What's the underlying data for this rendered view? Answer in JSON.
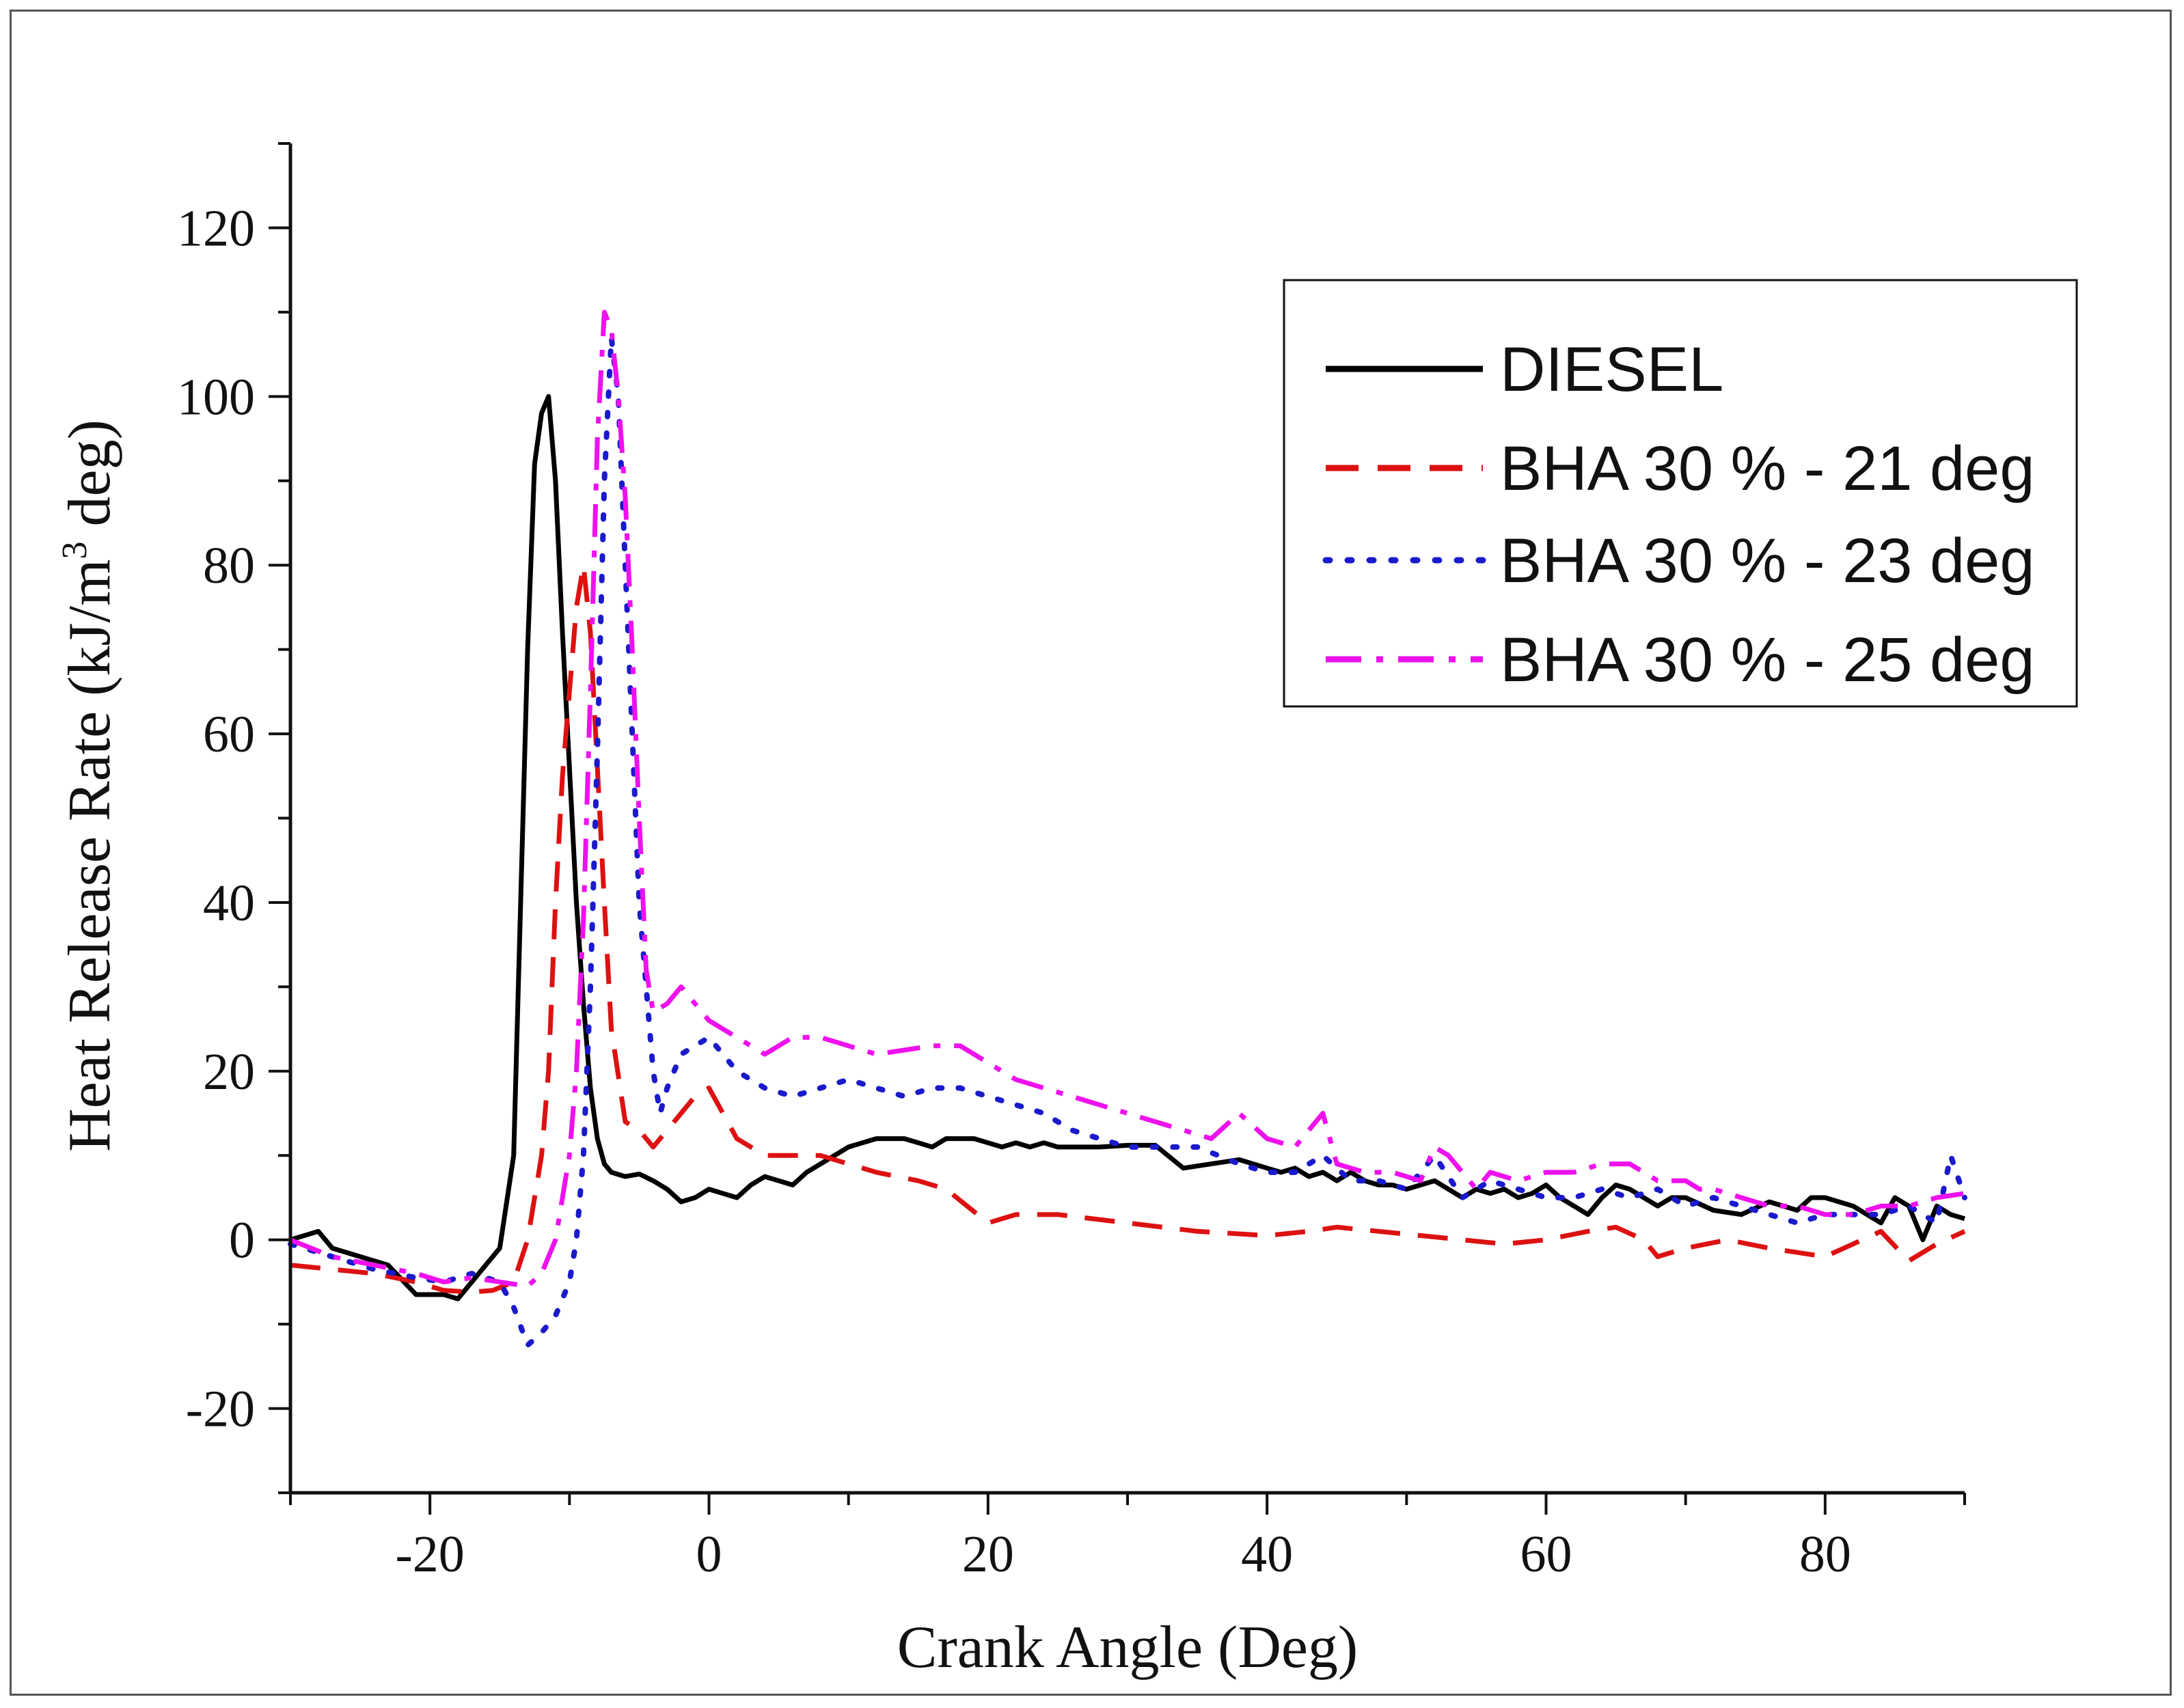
{
  "chart_data": {
    "type": "line",
    "title": "",
    "xlabel": "Crank Angle (Deg)",
    "ylabel_main": "Heat Release Rate (kJ/m",
    "ylabel_sup": "3",
    "ylabel_tail": " deg)",
    "xlim": [
      -30,
      90
    ],
    "ylim": [
      -30,
      130
    ],
    "xticks": [
      -20,
      0,
      20,
      40,
      60,
      80
    ],
    "yticks": [
      -20,
      0,
      20,
      40,
      60,
      80,
      100,
      120
    ],
    "legend_position": "top-right",
    "series": [
      {
        "name": "DIESEL",
        "color": "#000000",
        "style": "solid",
        "x": [
          -30,
          -28,
          -27,
          -25,
          -23,
          -21,
          -19,
          -18,
          -17,
          -16,
          -15,
          -14,
          -13.5,
          -13,
          -12.5,
          -12,
          -11.5,
          -11,
          -10.5,
          -10,
          -9.5,
          -9,
          -8.5,
          -8,
          -7.5,
          -7,
          -6,
          -5,
          -4,
          -3,
          -2,
          -1,
          0,
          1,
          2,
          3,
          4,
          5,
          6,
          7,
          8,
          9,
          10,
          11,
          12,
          13,
          14,
          15,
          16,
          17,
          18,
          19,
          20,
          21,
          22,
          23,
          24,
          25,
          26,
          27,
          28,
          30,
          32,
          34,
          36,
          38,
          40,
          41,
          42,
          43,
          44,
          45,
          46,
          47,
          48,
          49,
          50,
          51,
          52,
          53,
          54,
          55,
          56,
          57,
          58,
          59,
          60,
          61,
          62,
          63,
          64,
          65,
          66,
          67,
          68,
          69,
          70,
          72,
          74,
          76,
          78,
          79,
          80,
          82,
          84,
          85,
          86,
          87,
          88,
          89,
          90
        ],
        "y": [
          0,
          1,
          -1,
          -2,
          -3,
          -6.5,
          -6.5,
          -7,
          -5,
          -3,
          -1,
          10,
          40,
          70,
          92,
          98,
          100,
          90,
          72,
          56,
          40,
          28,
          18,
          12,
          9,
          8,
          7.5,
          7.8,
          7,
          6,
          4.5,
          5,
          6,
          5.5,
          5,
          6.5,
          7.5,
          7,
          6.5,
          8,
          9,
          10,
          11,
          11.5,
          12,
          12,
          12,
          11.5,
          11,
          12,
          12,
          12,
          11.5,
          11,
          11.5,
          11,
          11.5,
          11,
          11,
          11,
          11,
          11.2,
          11.2,
          8.5,
          9,
          9.5,
          8.5,
          8,
          8.5,
          7.5,
          8,
          7,
          8,
          7,
          6.5,
          6.5,
          6,
          6.5,
          7,
          6,
          5,
          6,
          5.5,
          6,
          5,
          5.5,
          6.5,
          5,
          4,
          3,
          5,
          6.5,
          6,
          5,
          4,
          5,
          5,
          3.5,
          3,
          4.5,
          3.5,
          5,
          5,
          4,
          2,
          5,
          4,
          0,
          4,
          3,
          2.5
        ]
      },
      {
        "name": "BHA 30 % - 21 deg",
        "color": "#dd1111",
        "style": "dashed",
        "x": [
          -30,
          -27,
          -24,
          -21,
          -19,
          -17,
          -15.5,
          -14,
          -13,
          -12,
          -11.5,
          -11,
          -10.5,
          -10,
          -9.5,
          -9,
          -8.5,
          -8,
          -7.5,
          -7,
          -6,
          -5,
          -4,
          -3,
          -2,
          -1,
          0,
          1,
          2,
          4,
          6,
          8,
          10,
          12,
          15,
          17,
          20,
          22,
          25,
          30,
          35,
          40,
          43,
          45,
          48,
          51,
          54,
          57,
          60,
          63,
          65,
          67,
          68,
          70,
          73,
          76,
          80,
          84,
          86,
          88,
          90
        ],
        "y": [
          -3,
          -3.5,
          -4,
          -5,
          -6,
          -6.2,
          -6,
          -5,
          0,
          10,
          20,
          40,
          55,
          65,
          75,
          80,
          72,
          56,
          40,
          25,
          14,
          13,
          11,
          13,
          15,
          17,
          18,
          15,
          12,
          10,
          10,
          10,
          9,
          8,
          7,
          6,
          2,
          3,
          3,
          2,
          1,
          0.5,
          1,
          1.5,
          1,
          0.5,
          0,
          -0.5,
          0,
          1,
          1.5,
          0,
          -2,
          -1,
          0,
          -1,
          -2,
          1,
          -2.5,
          -0.5,
          1
        ]
      },
      {
        "name": "BHA 30 % - 23 deg",
        "color": "#1a1acc",
        "style": "dotted",
        "x": [
          -30,
          -27,
          -24,
          -21,
          -19,
          -17,
          -15,
          -14,
          -13,
          -12,
          -11.5,
          -11,
          -10.5,
          -10,
          -9.5,
          -9,
          -8.5,
          -8,
          -7.5,
          -7,
          -6.5,
          -6,
          -5.5,
          -5,
          -4.5,
          -4,
          -3.5,
          -3,
          -2,
          -1,
          0,
          1,
          2,
          4,
          6,
          8,
          10,
          12,
          14,
          16,
          18,
          20,
          22,
          24,
          26,
          28,
          30,
          32,
          35,
          38,
          40,
          42,
          44,
          46,
          48,
          50,
          52,
          54,
          56,
          58,
          60,
          62,
          64,
          66,
          68,
          70,
          72,
          74,
          76,
          78,
          80,
          82,
          84,
          86,
          88,
          89,
          90
        ],
        "y": [
          -0.5,
          -2,
          -3.5,
          -4.5,
          -5,
          -4,
          -5,
          -8,
          -12.5,
          -11,
          -10,
          -9,
          -7,
          -5,
          0,
          10,
          30,
          58,
          90,
          107,
          100,
          80,
          60,
          40,
          30,
          20,
          15,
          18,
          22,
          23,
          24,
          22,
          20,
          18,
          17,
          18,
          19,
          18,
          17,
          18,
          18,
          17,
          16,
          15,
          13,
          12,
          11,
          11,
          11,
          9,
          8,
          8,
          10,
          7,
          7,
          6,
          10,
          5,
          7,
          6,
          5,
          5,
          6,
          5,
          6,
          4,
          5,
          4,
          3,
          2,
          3,
          3,
          3,
          4,
          2,
          10,
          5
        ]
      },
      {
        "name": "BHA 30 % - 25 deg",
        "color": "#ee11ee",
        "style": "dashdot",
        "x": [
          -30,
          -27,
          -24,
          -21,
          -19,
          -17,
          -15,
          -13,
          -12,
          -11,
          -10,
          -9.5,
          -9,
          -8.5,
          -8,
          -7.5,
          -7,
          -6.5,
          -6,
          -5.5,
          -5,
          -4.5,
          -4,
          -3,
          -2,
          -1,
          0,
          1,
          2,
          4,
          6,
          8,
          10,
          12,
          14,
          16,
          18,
          20,
          22,
          24,
          26,
          28,
          30,
          32,
          34,
          36,
          38,
          40,
          42,
          44,
          45,
          47,
          49,
          51,
          52,
          53,
          54,
          55,
          56,
          58,
          60,
          62,
          64,
          66,
          68,
          70,
          71,
          72,
          74,
          76,
          78,
          80,
          82,
          84,
          86,
          88,
          90
        ],
        "y": [
          0,
          -2,
          -3,
          -4,
          -5,
          -4.5,
          -5,
          -5.5,
          -4,
          0,
          10,
          20,
          38,
          65,
          95,
          110,
          108,
          100,
          88,
          70,
          50,
          32,
          27,
          28,
          30,
          28,
          26,
          25,
          24,
          22,
          24,
          24,
          23,
          22,
          22.5,
          23,
          23,
          21,
          19,
          18,
          17,
          16,
          15,
          14,
          13,
          12,
          15,
          12,
          11,
          15,
          9,
          8,
          8,
          7,
          11,
          10,
          8,
          6,
          8,
          7,
          8,
          8,
          9,
          9,
          7,
          7,
          6,
          6,
          5,
          4,
          4,
          3,
          3,
          4,
          4,
          5,
          5.5
        ]
      }
    ]
  }
}
